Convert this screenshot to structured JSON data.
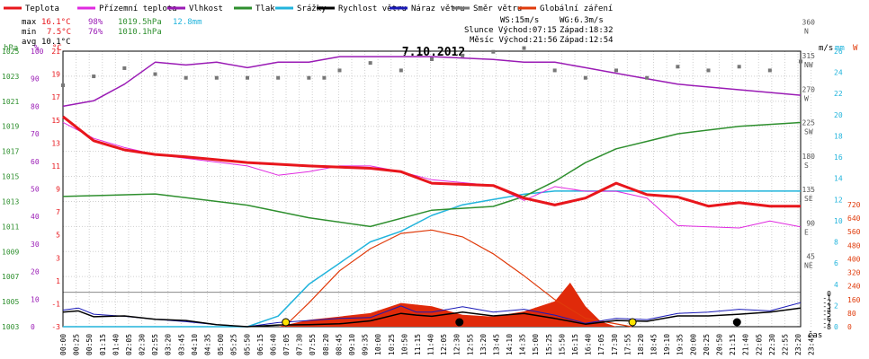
{
  "chart_data": {
    "type": "line",
    "title": "7.10.2012",
    "legend": [
      {
        "name": "Teplota",
        "color": "#e8161c"
      },
      {
        "name": "Přízemní teplota",
        "color": "#e02ae0"
      },
      {
        "name": "Vlhkost",
        "color": "#9a1bb5"
      },
      {
        "name": "Tlak",
        "color": "#2e8f2e"
      },
      {
        "name": "Srážky",
        "color": "#22b4dc"
      },
      {
        "name": "Rychlost větru",
        "color": "#000000"
      },
      {
        "name": "Náraz větru",
        "color": "#1a1ab8"
      },
      {
        "name": "Směr větru",
        "color": "#777777"
      },
      {
        "name": "Globální záření",
        "color": "#e03a0a"
      }
    ],
    "stats": {
      "max": {
        "label": "max",
        "temp": "16.1°C",
        "hum": "98%",
        "press": "1019.5hPa",
        "rain": "12.8mm"
      },
      "min": {
        "label": "min",
        "temp": "7.5°C",
        "hum": "76%",
        "press": "1010.1hPa"
      },
      "avg": {
        "label": "avg",
        "temp": "10.1°C"
      }
    },
    "info": {
      "ws": "WS:15m/s",
      "wg": "WG:6.3m/s",
      "sun": "Slunce Východ:07:15",
      "sun_set": "Západ:18:32",
      "moon": "Měsíc Východ:21:56",
      "moon_set": "Západ:12:54"
    },
    "axes": {
      "hpa": {
        "unit": "hPa",
        "ticks": [
          "1025",
          "1023",
          "1021",
          "1019",
          "1017",
          "1015",
          "1013",
          "1011",
          "1009",
          "1007",
          "1005",
          "1003"
        ]
      },
      "hum": {
        "unit": "%",
        "ticks": [
          "100",
          "90",
          "80",
          "70",
          "60",
          "50",
          "40",
          "30",
          "20",
          "10",
          "0"
        ]
      },
      "temp": {
        "unit": "°C",
        "ticks": [
          "21",
          "19",
          "17",
          "15",
          "13",
          "11",
          "9",
          "7",
          "5",
          "3",
          "1",
          "-1",
          "-3"
        ]
      },
      "wind": {
        "unit": "m/s",
        "ticks": [
          "-8",
          "-7",
          "-6",
          "-5",
          "-4",
          "-3",
          "-2",
          "-1",
          "0"
        ]
      },
      "mm": {
        "unit": "mm",
        "ticks": [
          "26",
          "24",
          "22",
          "20",
          "18",
          "16",
          "14",
          "12",
          "10",
          "8",
          "6",
          "4",
          "2",
          "0"
        ]
      },
      "rad": {
        "unit": "W",
        "ticks": [
          "720",
          "640",
          "560",
          "480",
          "400",
          "320",
          "240",
          "160",
          "80",
          "0"
        ]
      },
      "dir": {
        "ticks": [
          {
            "deg": "360",
            "dir": "N"
          },
          {
            "deg": "315",
            "dir": "NW"
          },
          {
            "deg": "270",
            "dir": "W"
          },
          {
            "deg": "225",
            "dir": "SW"
          },
          {
            "deg": "180",
            "dir": "S"
          },
          {
            "deg": "135",
            "dir": "SE"
          },
          {
            "deg": "90",
            "dir": "E"
          },
          {
            "deg": "45",
            "dir": "NE"
          }
        ]
      },
      "x_label": "čas",
      "x_ticks": [
        "00:00",
        "00:25",
        "00:50",
        "01:15",
        "01:40",
        "02:05",
        "02:30",
        "02:55",
        "03:20",
        "03:45",
        "04:10",
        "04:35",
        "05:00",
        "05:25",
        "05:50",
        "06:15",
        "06:40",
        "07:05",
        "07:30",
        "07:55",
        "08:20",
        "08:45",
        "09:10",
        "09:35",
        "10:00",
        "10:25",
        "10:50",
        "11:15",
        "11:40",
        "12:05",
        "12:30",
        "12:55",
        "13:20",
        "13:45",
        "14:10",
        "14:35",
        "15:00",
        "15:25",
        "15:50",
        "16:15",
        "16:40",
        "17:05",
        "17:30",
        "17:55",
        "18:20",
        "18:45",
        "19:10",
        "19:35",
        "20:00",
        "20:25",
        "20:50",
        "21:15",
        "21:40",
        "22:05",
        "22:30",
        "22:55",
        "23:20",
        "23:45"
      ]
    },
    "series": {
      "temperature_c": [
        [
          0,
          15.3
        ],
        [
          1,
          13.2
        ],
        [
          2,
          12.4
        ],
        [
          3,
          12.0
        ],
        [
          4,
          11.8
        ],
        [
          6,
          11.3
        ],
        [
          8,
          11.0
        ],
        [
          10,
          10.8
        ],
        [
          11,
          10.5
        ],
        [
          12,
          9.5
        ],
        [
          14,
          9.3
        ],
        [
          15,
          8.2
        ],
        [
          16,
          7.6
        ],
        [
          17,
          8.2
        ],
        [
          18,
          9.5
        ],
        [
          19,
          8.5
        ],
        [
          20,
          8.3
        ],
        [
          21,
          7.5
        ],
        [
          22,
          7.8
        ],
        [
          23,
          7.5
        ],
        [
          24,
          7.5
        ]
      ],
      "ground_temp_c": [
        [
          0,
          14.8
        ],
        [
          1,
          13.4
        ],
        [
          2,
          12.6
        ],
        [
          3,
          12.0
        ],
        [
          6,
          11.0
        ],
        [
          7,
          10.2
        ],
        [
          8,
          10.5
        ],
        [
          9,
          11.0
        ],
        [
          10,
          11.0
        ],
        [
          11,
          10.5
        ],
        [
          12,
          9.8
        ],
        [
          14,
          9.3
        ],
        [
          15,
          8.0
        ],
        [
          16,
          9.2
        ],
        [
          17,
          8.8
        ],
        [
          18,
          8.8
        ],
        [
          19,
          8.2
        ],
        [
          20,
          5.8
        ],
        [
          22,
          5.6
        ],
        [
          23,
          6.2
        ],
        [
          24,
          5.7
        ]
      ],
      "humidity_pct": [
        [
          0,
          80
        ],
        [
          1,
          82
        ],
        [
          2,
          88
        ],
        [
          3,
          96
        ],
        [
          4,
          95
        ],
        [
          5,
          96
        ],
        [
          6,
          94
        ],
        [
          7,
          96
        ],
        [
          8,
          96
        ],
        [
          9,
          98
        ],
        [
          12,
          98
        ],
        [
          14,
          97
        ],
        [
          15,
          96
        ],
        [
          16,
          96
        ],
        [
          17,
          94
        ],
        [
          18,
          92
        ],
        [
          19,
          90
        ],
        [
          20,
          88
        ],
        [
          22,
          86
        ],
        [
          24,
          84
        ]
      ],
      "pressure_hpa": [
        [
          0,
          1013.4
        ],
        [
          3,
          1013.6
        ],
        [
          6,
          1012.7
        ],
        [
          8,
          1011.7
        ],
        [
          10,
          1011.0
        ],
        [
          12,
          1012.3
        ],
        [
          14,
          1012.6
        ],
        [
          15,
          1013.4
        ],
        [
          16,
          1014.6
        ],
        [
          17,
          1016.1
        ],
        [
          18,
          1017.2
        ],
        [
          19,
          1017.8
        ],
        [
          20,
          1018.4
        ],
        [
          22,
          1019.0
        ],
        [
          24,
          1019.3
        ]
      ],
      "rain_mm": [
        [
          0,
          0
        ],
        [
          6,
          0
        ],
        [
          7,
          1
        ],
        [
          8,
          4
        ],
        [
          9,
          6
        ],
        [
          10,
          8
        ],
        [
          11,
          9
        ],
        [
          12,
          10.5
        ],
        [
          13,
          11.5
        ],
        [
          14,
          12
        ],
        [
          15,
          12.5
        ],
        [
          16,
          12.8
        ],
        [
          24,
          12.8
        ]
      ],
      "wind_speed_ms": [
        [
          0,
          -4.5
        ],
        [
          0.5,
          -4.2
        ],
        [
          1,
          -5.6
        ],
        [
          2,
          -5.4
        ],
        [
          3,
          -6.2
        ],
        [
          4,
          -6.5
        ],
        [
          5,
          -7.5
        ],
        [
          6,
          -8
        ],
        [
          7,
          -7.6
        ],
        [
          8,
          -7.5
        ],
        [
          9,
          -7.3
        ],
        [
          10,
          -6.6
        ],
        [
          11,
          -4.8
        ],
        [
          11.5,
          -5.2
        ],
        [
          12,
          -5.5
        ],
        [
          13,
          -4.5
        ],
        [
          14,
          -5.4
        ],
        [
          15,
          -4.8
        ],
        [
          16,
          -6.0
        ],
        [
          17,
          -7.4
        ],
        [
          18,
          -6.5
        ],
        [
          19,
          -6.7
        ],
        [
          20,
          -5.4
        ],
        [
          21,
          -5.4
        ],
        [
          22,
          -5.0
        ],
        [
          23,
          -4.5
        ],
        [
          24,
          -3.5
        ]
      ],
      "wind_gust_ms": [
        [
          0,
          -4.0
        ],
        [
          0.5,
          -3.5
        ],
        [
          1,
          -5.0
        ],
        [
          2,
          -5.5
        ],
        [
          3,
          -6.2
        ],
        [
          4,
          -6.8
        ],
        [
          5,
          -7.5
        ],
        [
          6,
          -8
        ],
        [
          7,
          -7.0
        ],
        [
          8,
          -6.5
        ],
        [
          9,
          -6.0
        ],
        [
          10,
          -5.8
        ],
        [
          11,
          -3.0
        ],
        [
          11.5,
          -4.5
        ],
        [
          12,
          -4.5
        ],
        [
          13,
          -3.2
        ],
        [
          14,
          -4.5
        ],
        [
          15,
          -3.8
        ],
        [
          16,
          -5.2
        ],
        [
          17,
          -7.2
        ],
        [
          18,
          -6.0
        ],
        [
          19,
          -6.3
        ],
        [
          20,
          -4.8
        ],
        [
          21,
          -4.5
        ],
        [
          22,
          -3.8
        ],
        [
          23,
          -4.2
        ],
        [
          24,
          -2.2
        ]
      ],
      "wind_dir_deg": [
        [
          0,
          280
        ],
        [
          1,
          292
        ],
        [
          2,
          303
        ],
        [
          3,
          295
        ],
        [
          4,
          290
        ],
        [
          5,
          290
        ],
        [
          6,
          290
        ],
        [
          7,
          290
        ],
        [
          8,
          290
        ],
        [
          8.5,
          290
        ],
        [
          9,
          300
        ],
        [
          10,
          310
        ],
        [
          11,
          300
        ],
        [
          12,
          315
        ],
        [
          13,
          320
        ],
        [
          14,
          325
        ],
        [
          15,
          330
        ],
        [
          16,
          300
        ],
        [
          17,
          290
        ],
        [
          18,
          300
        ],
        [
          19,
          290
        ],
        [
          20,
          305
        ],
        [
          21,
          300
        ],
        [
          22,
          305
        ],
        [
          23,
          300
        ],
        [
          24,
          312
        ]
      ],
      "radiation_w": [
        [
          7,
          0
        ],
        [
          8,
          40
        ],
        [
          9,
          60
        ],
        [
          10,
          80
        ],
        [
          11,
          140
        ],
        [
          12,
          120
        ],
        [
          13,
          70
        ],
        [
          14,
          60
        ],
        [
          15,
          90
        ],
        [
          16,
          150
        ],
        [
          16.5,
          260
        ],
        [
          17,
          120
        ],
        [
          17.5,
          30
        ],
        [
          18,
          0
        ]
      ],
      "theoretical_radiation_w": [
        [
          7.2,
          0
        ],
        [
          8,
          140
        ],
        [
          9,
          330
        ],
        [
          10,
          460
        ],
        [
          11,
          550
        ],
        [
          12,
          570
        ],
        [
          13,
          530
        ],
        [
          14,
          430
        ],
        [
          15,
          300
        ],
        [
          16,
          160
        ],
        [
          17,
          50
        ],
        [
          18.5,
          0
        ]
      ]
    }
  }
}
